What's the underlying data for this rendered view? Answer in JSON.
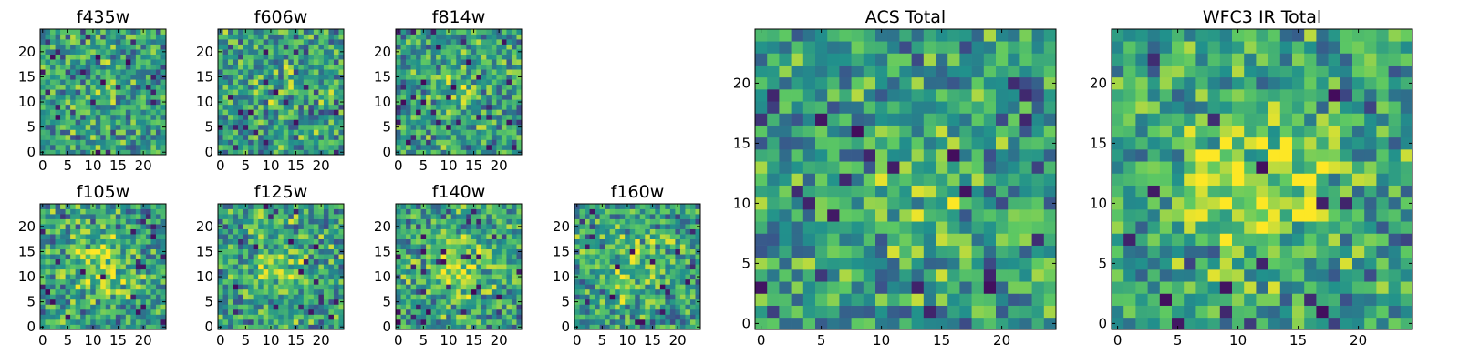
{
  "figure": {
    "colormap": "viridis",
    "colormap_stops": [
      "#440154",
      "#3b528b",
      "#21918c",
      "#5ec962",
      "#fde725"
    ],
    "frame_color": "#000000"
  },
  "chart_data": [
    {
      "type": "heatmap",
      "title": "f435w",
      "grid_size": 25,
      "xticks": [
        0,
        5,
        10,
        15,
        20
      ],
      "yticks": [
        0,
        5,
        10,
        15,
        20
      ],
      "seed": 435,
      "blob_amplitude": 0.05
    },
    {
      "type": "heatmap",
      "title": "f606w",
      "grid_size": 25,
      "xticks": [
        0,
        5,
        10,
        15,
        20
      ],
      "yticks": [
        0,
        5,
        10,
        15,
        20
      ],
      "seed": 606,
      "blob_amplitude": 0.08
    },
    {
      "type": "heatmap",
      "title": "f814w",
      "grid_size": 25,
      "xticks": [
        0,
        5,
        10,
        15,
        20
      ],
      "yticks": [
        0,
        5,
        10,
        15,
        20
      ],
      "seed": 814,
      "blob_amplitude": 0.12
    },
    {
      "type": "heatmap",
      "title": "f105w",
      "grid_size": 25,
      "xticks": [
        0,
        5,
        10,
        15,
        20
      ],
      "yticks": [
        0,
        5,
        10,
        15,
        20
      ],
      "seed": 105,
      "blob_amplitude": 0.28
    },
    {
      "type": "heatmap",
      "title": "f125w",
      "grid_size": 25,
      "xticks": [
        0,
        5,
        10,
        15,
        20
      ],
      "yticks": [
        0,
        5,
        10,
        15,
        20
      ],
      "seed": 125,
      "blob_amplitude": 0.22
    },
    {
      "type": "heatmap",
      "title": "f140w",
      "grid_size": 25,
      "xticks": [
        0,
        5,
        10,
        15,
        20
      ],
      "yticks": [
        0,
        5,
        10,
        15,
        20
      ],
      "seed": 140,
      "blob_amplitude": 0.3
    },
    {
      "type": "heatmap",
      "title": "f160w",
      "grid_size": 25,
      "xticks": [
        0,
        5,
        10,
        15,
        20
      ],
      "yticks": [
        0,
        5,
        10,
        15,
        20
      ],
      "seed": 160,
      "blob_amplitude": 0.22
    },
    {
      "type": "heatmap",
      "title": "ACS Total",
      "grid_size": 25,
      "xticks": [
        0,
        5,
        10,
        15,
        20
      ],
      "yticks": [
        0,
        5,
        10,
        15,
        20
      ],
      "seed": 900,
      "blob_amplitude": 0.12
    },
    {
      "type": "heatmap",
      "title": "WFC3 IR Total",
      "grid_size": 25,
      "xticks": [
        0,
        5,
        10,
        15,
        20
      ],
      "yticks": [
        0,
        5,
        10,
        15,
        20
      ],
      "seed": 901,
      "blob_amplitude": 0.35
    }
  ]
}
